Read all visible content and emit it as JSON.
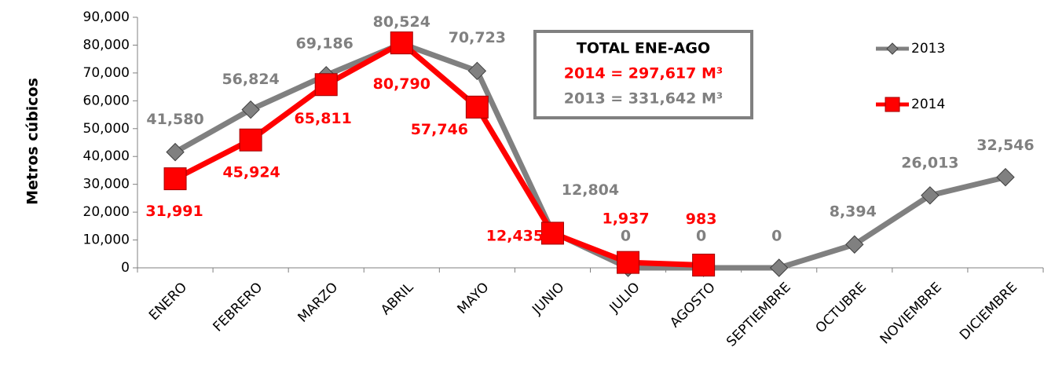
{
  "chart_data": {
    "type": "line",
    "y_label": "Metros cúbicos",
    "categories": [
      "ENERO",
      "FEBRERO",
      "MARZO",
      "ABRIL",
      "MAYO",
      "JUNIO",
      "JULIO",
      "AGOSTO",
      "SEPTIEMBRE",
      "OCTUBRE",
      "NOVIEMBRE",
      "DICIEMBRE"
    ],
    "series": [
      {
        "name": "2013",
        "color": "#808080",
        "marker": "diamond",
        "values": [
          41580,
          56824,
          69186,
          80524,
          70723,
          12804,
          0,
          0,
          0,
          8394,
          26013,
          32546
        ],
        "value_labels": [
          "41,580",
          "56,824",
          "69,186",
          "80,524",
          "70,723",
          "12,804",
          "0",
          "0",
          "0",
          "8,394",
          "26,013",
          "32,546"
        ]
      },
      {
        "name": "2014",
        "color": "#ff0000",
        "marker": "square",
        "values": [
          31991,
          45924,
          65811,
          80790,
          57746,
          12435,
          1937,
          983,
          null,
          null,
          null,
          null
        ],
        "value_labels": [
          "31,991",
          "45,924",
          "65,811",
          "80,790",
          "57,746",
          "12,435",
          "1,937",
          "983",
          null,
          null,
          null,
          null
        ]
      }
    ],
    "annotations": [
      "TOTAL ENE-AGO",
      "2014 = 297,617 M³",
      "2013 = 331,642 M³"
    ],
    "ylim": [
      0,
      90000
    ],
    "yticks": [
      0,
      {
        "value": 10000,
        "label": "10,000"
      },
      {
        "value": 20000,
        "label": "20,000"
      },
      {
        "value": 30000,
        "label": "30,000"
      },
      {
        "value": 40000,
        "label": "40,000"
      },
      {
        "value": 50000,
        "label": "50,000"
      },
      {
        "value": 60000,
        "label": "60,000"
      },
      {
        "value": 70000,
        "label": "70,000"
      },
      {
        "value": 80000,
        "label": "80,000"
      },
      {
        "value": 90000,
        "label": "90,000"
      }
    ],
    "legend": "top-right"
  }
}
